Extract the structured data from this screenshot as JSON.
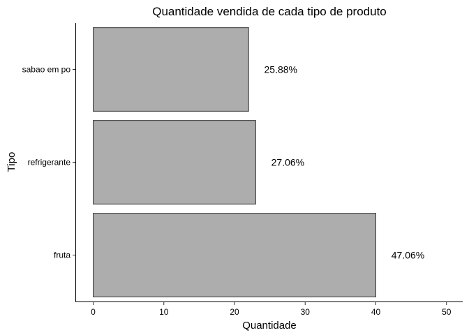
{
  "chart_data": {
    "type": "bar",
    "orientation": "horizontal",
    "title": "Quantidade vendida de cada tipo de produto",
    "xlabel": "Quantidade",
    "ylabel": "Tipo",
    "categories": [
      "fruta",
      "refrigerante",
      "sabao em po"
    ],
    "values": [
      40,
      23,
      22
    ],
    "data_labels": [
      "47.06%",
      "27.06%",
      "25.88%"
    ],
    "xlim": [
      0,
      50
    ],
    "xticks": [
      0,
      10,
      20,
      30,
      40,
      50
    ],
    "grid": false,
    "legend": "none",
    "bar_color": "#ADADAD",
    "bar_edge_color": "#333333"
  }
}
